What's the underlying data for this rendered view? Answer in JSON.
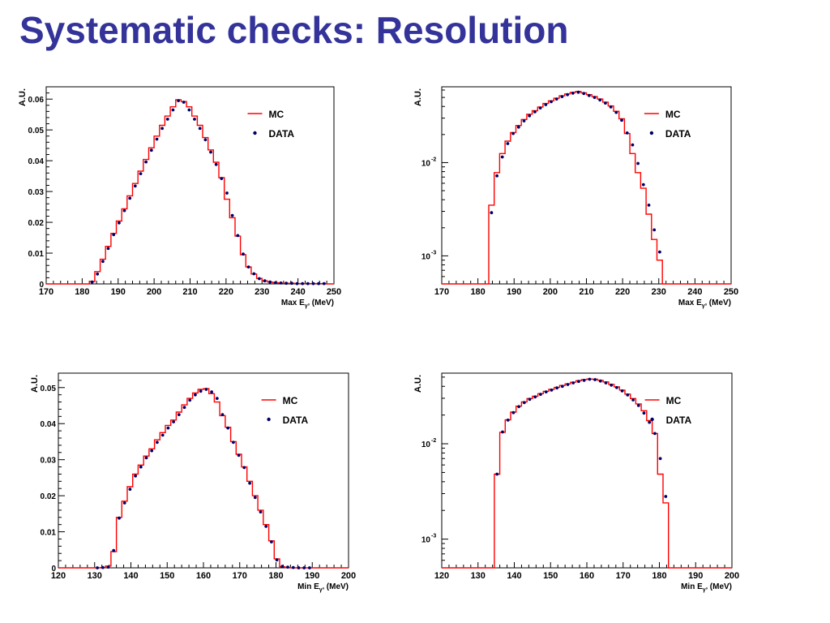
{
  "title": "Systematic checks: Resolution",
  "colors": {
    "title": "#333399",
    "mc": "#ff0000",
    "data": "#000066"
  },
  "chart_data": [
    {
      "type": "histogram",
      "scale": "linear",
      "ylabel": "A.U.",
      "xlabel_pre": "Max E",
      "xlabel_sub": "γ³",
      "xlabel_post": " (MeV)",
      "xlim": [
        170,
        250
      ],
      "ylim": [
        0,
        0.064
      ],
      "xticks": [
        170,
        180,
        190,
        200,
        210,
        220,
        230,
        240,
        250
      ],
      "xtick_labels": [
        "170",
        "180",
        "190",
        "200",
        "210",
        "220",
        "230",
        "240",
        "250"
      ],
      "yticks": [
        0,
        0.01,
        0.02,
        0.03,
        0.04,
        0.05,
        0.06
      ],
      "ytick_labels": [
        "0",
        "0.01",
        "0.02",
        "0.03",
        "0.04",
        "0.05",
        "0.06"
      ],
      "legend": {
        "position": "top-right",
        "mc": "MC",
        "data": "DATA"
      },
      "bin_width": 1.5,
      "x": [
        182.75,
        184.25,
        185.75,
        187.25,
        188.75,
        190.25,
        191.75,
        193.25,
        194.75,
        196.25,
        197.75,
        199.25,
        200.75,
        202.25,
        203.75,
        205.25,
        206.75,
        208.25,
        209.75,
        211.25,
        212.75,
        214.25,
        215.75,
        217.25,
        218.75,
        220.25,
        221.75,
        223.25,
        224.75,
        226.25,
        227.75,
        229.25,
        230.75,
        232.25,
        233.75,
        235.25,
        236.75,
        238.25,
        239.75,
        241.25,
        242.75,
        244.25,
        245.75,
        247.25
      ],
      "mc": [
        0.0008,
        0.004,
        0.008,
        0.0122,
        0.0164,
        0.0204,
        0.0244,
        0.0286,
        0.0326,
        0.0366,
        0.0404,
        0.0442,
        0.048,
        0.0515,
        0.0545,
        0.0575,
        0.0598,
        0.0592,
        0.0575,
        0.0545,
        0.0515,
        0.0475,
        0.0435,
        0.0395,
        0.0345,
        0.0275,
        0.0215,
        0.0155,
        0.0095,
        0.0055,
        0.0032,
        0.0018,
        0.001,
        0.0006,
        0.0004,
        0.0003,
        0.0002,
        0.0002,
        0.0001,
        0.0001,
        0.0001,
        0.0001,
        0.0001,
        0.0001
      ],
      "data": [
        0.0006,
        0.0032,
        0.0073,
        0.0115,
        0.016,
        0.0198,
        0.0238,
        0.0278,
        0.0318,
        0.0358,
        0.0396,
        0.0434,
        0.047,
        0.0505,
        0.0535,
        0.0565,
        0.0595,
        0.059,
        0.0565,
        0.0535,
        0.0505,
        0.0468,
        0.0428,
        0.0388,
        0.0342,
        0.0295,
        0.0222,
        0.0157,
        0.0097,
        0.0055,
        0.0033,
        0.0017,
        0.001,
        0.0006,
        0.0004,
        0.0003,
        0.0002,
        0.0002,
        0.0001,
        0.0001,
        0.0001,
        0.0001,
        0.0001,
        0.0001
      ]
    },
    {
      "type": "histogram",
      "scale": "log",
      "ylabel": "A.U.",
      "xlabel_pre": "Max E",
      "xlabel_sub": "γ³",
      "xlabel_post": " (MeV)",
      "xlim": [
        170,
        250
      ],
      "ylim": [
        0.0005,
        0.065
      ],
      "xticks": [
        170,
        180,
        190,
        200,
        210,
        220,
        230,
        240,
        250
      ],
      "xtick_labels": [
        "170",
        "180",
        "190",
        "200",
        "210",
        "220",
        "230",
        "240",
        "250"
      ],
      "yticks": [
        0.01,
        0.001
      ],
      "ytick_labels": [
        {
          "base": "10",
          "exp": "-2"
        },
        {
          "base": "10",
          "exp": "-3"
        }
      ],
      "legend": {
        "position": "top-right",
        "mc": "MC",
        "data": "DATA"
      },
      "bin_width": 1.5,
      "x": [
        183.75,
        185.25,
        186.75,
        188.25,
        189.75,
        191.25,
        192.75,
        194.25,
        195.75,
        197.25,
        198.75,
        200.25,
        201.75,
        203.25,
        204.75,
        206.25,
        207.75,
        209.25,
        210.75,
        212.25,
        213.75,
        215.25,
        216.75,
        218.25,
        219.75,
        221.25,
        222.75,
        224.25,
        225.75,
        227.25,
        228.75,
        230.25
      ],
      "mc": [
        0.0035,
        0.0078,
        0.0125,
        0.017,
        0.021,
        0.025,
        0.029,
        0.033,
        0.036,
        0.0395,
        0.043,
        0.046,
        0.049,
        0.052,
        0.0545,
        0.0565,
        0.058,
        0.056,
        0.0535,
        0.051,
        0.048,
        0.0445,
        0.0405,
        0.0355,
        0.0295,
        0.0205,
        0.0125,
        0.0078,
        0.0053,
        0.0028,
        0.0015,
        0.0009
      ],
      "data": [
        0.0029,
        0.0072,
        0.0115,
        0.016,
        0.0205,
        0.024,
        0.028,
        0.0318,
        0.035,
        0.0385,
        0.0418,
        0.045,
        0.048,
        0.051,
        0.0535,
        0.0555,
        0.0568,
        0.055,
        0.0525,
        0.05,
        0.047,
        0.0435,
        0.0395,
        0.0345,
        0.0285,
        0.0208,
        0.0155,
        0.0098,
        0.0058,
        0.0035,
        0.0019,
        0.0011
      ]
    },
    {
      "type": "histogram",
      "scale": "linear",
      "ylabel": "A.U.",
      "xlabel_pre": "Min E",
      "xlabel_sub": "γ³",
      "xlabel_post": " (MeV)",
      "xlim": [
        120,
        200
      ],
      "ylim": [
        0,
        0.054
      ],
      "xticks": [
        120,
        130,
        140,
        150,
        160,
        170,
        180,
        190,
        200
      ],
      "xtick_labels": [
        "120",
        "130",
        "140",
        "150",
        "160",
        "170",
        "180",
        "190",
        "200"
      ],
      "yticks": [
        0,
        0.01,
        0.02,
        0.03,
        0.04,
        0.05
      ],
      "ytick_labels": [
        "0",
        "0.01",
        "0.02",
        "0.03",
        "0.04",
        "0.05"
      ],
      "legend": {
        "position": "top-right",
        "mc": "MC",
        "data": "DATA"
      },
      "bin_width": 1.5,
      "x": [
        130.75,
        132.25,
        133.75,
        135.25,
        136.75,
        138.25,
        139.75,
        141.25,
        142.75,
        144.25,
        145.75,
        147.25,
        148.75,
        150.25,
        151.75,
        153.25,
        154.75,
        156.25,
        157.75,
        159.25,
        160.75,
        162.25,
        163.75,
        165.25,
        166.75,
        168.25,
        169.75,
        171.25,
        172.75,
        174.25,
        175.75,
        177.25,
        178.75,
        180.25,
        181.75,
        183.25,
        184.75,
        186.25,
        187.75,
        189.25
      ],
      "mc": [
        0.0,
        0.0001,
        0.0005,
        0.0045,
        0.014,
        0.0185,
        0.0225,
        0.026,
        0.0285,
        0.031,
        0.033,
        0.0355,
        0.0375,
        0.0395,
        0.041,
        0.0432,
        0.0452,
        0.047,
        0.0485,
        0.0495,
        0.0497,
        0.0483,
        0.046,
        0.0422,
        0.039,
        0.035,
        0.0315,
        0.028,
        0.024,
        0.02,
        0.016,
        0.012,
        0.0075,
        0.0025,
        0.0003,
        0.0001,
        0.0,
        0.0,
        0.0,
        0.0
      ],
      "data": [
        0.0,
        0.0001,
        0.0002,
        0.0048,
        0.0138,
        0.018,
        0.0218,
        0.0255,
        0.028,
        0.0305,
        0.0325,
        0.0348,
        0.0368,
        0.0388,
        0.0405,
        0.0425,
        0.0445,
        0.0465,
        0.048,
        0.049,
        0.0495,
        0.0488,
        0.047,
        0.0425,
        0.0388,
        0.0348,
        0.0312,
        0.0278,
        0.0235,
        0.0195,
        0.0155,
        0.0115,
        0.0072,
        0.0022,
        0.0004,
        0.0002,
        0.0001,
        0.0,
        0.0,
        0.0
      ]
    },
    {
      "type": "histogram",
      "scale": "log",
      "ylabel": "A.U.",
      "xlabel_pre": "Min E",
      "xlabel_sub": "γ³",
      "xlabel_post": " (MeV)",
      "xlim": [
        120,
        200
      ],
      "ylim": [
        0.0005,
        0.055
      ],
      "xticks": [
        120,
        130,
        140,
        150,
        160,
        170,
        180,
        190,
        200
      ],
      "xtick_labels": [
        "120",
        "130",
        "140",
        "150",
        "160",
        "170",
        "180",
        "190",
        "200"
      ],
      "yticks": [
        0.01,
        0.001
      ],
      "ytick_labels": [
        {
          "base": "10",
          "exp": "-2"
        },
        {
          "base": "10",
          "exp": "-3"
        }
      ],
      "legend": {
        "position": "top-right",
        "mc": "MC",
        "data": "DATA"
      },
      "bin_width": 1.5,
      "x": [
        135.25,
        136.75,
        138.25,
        139.75,
        141.25,
        142.75,
        144.25,
        145.75,
        147.25,
        148.75,
        150.25,
        151.75,
        153.25,
        154.75,
        156.25,
        157.75,
        159.25,
        160.75,
        162.25,
        163.75,
        165.25,
        166.75,
        168.25,
        169.75,
        171.25,
        172.75,
        174.25,
        175.75,
        177.25,
        178.75,
        180.25,
        181.75
      ],
      "mc": [
        0.0048,
        0.0132,
        0.0178,
        0.0215,
        0.0248,
        0.0275,
        0.0298,
        0.0315,
        0.0335,
        0.0355,
        0.0372,
        0.039,
        0.0408,
        0.0425,
        0.0442,
        0.0458,
        0.047,
        0.0478,
        0.0475,
        0.0462,
        0.0445,
        0.042,
        0.0395,
        0.0365,
        0.0332,
        0.0298,
        0.0262,
        0.0222,
        0.0175,
        0.0128,
        0.0048,
        0.0024
      ],
      "data": [
        0.0048,
        0.0133,
        0.0177,
        0.0212,
        0.0245,
        0.027,
        0.0292,
        0.031,
        0.033,
        0.035,
        0.0365,
        0.0385,
        0.04,
        0.0418,
        0.0435,
        0.045,
        0.0462,
        0.0475,
        0.047,
        0.0455,
        0.0435,
        0.0412,
        0.0388,
        0.0358,
        0.0325,
        0.0288,
        0.0252,
        0.021,
        0.0168,
        0.0128,
        0.007,
        0.0028
      ]
    }
  ]
}
